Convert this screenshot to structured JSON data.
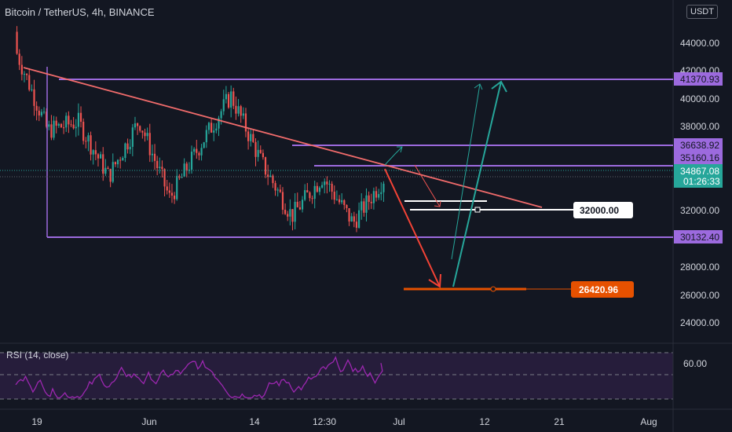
{
  "header": {
    "title": "Bitcoin / TetherUS, 4h, BINANCE",
    "currency": "USDT"
  },
  "colors": {
    "background": "#131722",
    "up_candle": "#26a69a",
    "down_candle": "#ef5350",
    "level_line": "#9c6ade",
    "trend_line": "#f06b6b",
    "target_line": "#e65100",
    "rsi_line": "#9c27b0"
  },
  "price_axis": {
    "ticks": [
      "44000.00",
      "42000.00",
      "40000.00",
      "38000.00",
      "32000.00",
      "28000.00",
      "26000.00",
      "24000.00"
    ]
  },
  "price_tags": {
    "r_41370": "41370.93",
    "r_36638": "36638.92",
    "r_35160": "35160.16",
    "last_price": "34867.08",
    "countdown": "01:26:33",
    "s_30132": "30132.40",
    "label_32000": "32000.00",
    "target_26420": "26420.96"
  },
  "time_axis": {
    "labels": [
      "19",
      "Jun",
      "14",
      "12:30",
      "Jul",
      "12",
      "21",
      "Aug"
    ]
  },
  "rsi": {
    "label": "RSI (14, close)",
    "level_label": "60.00",
    "latest": 61
  },
  "chart_data": {
    "type": "candlestick",
    "title": "Bitcoin / TetherUS, 4h, BINANCE",
    "x_range_labels": [
      "19",
      "Jun",
      "14",
      "12:30",
      "Jul",
      "12",
      "21",
      "Aug"
    ],
    "ylim": [
      22800,
      46000
    ],
    "horizontal_levels": [
      41370.93,
      36638.92,
      35160.16,
      30132.4
    ],
    "last_price": 34867.08,
    "drawn_levels": [
      32000.0,
      26420.96
    ],
    "price_path_approx": [
      {
        "x": "May 19",
        "close": 43500
      },
      {
        "x": "May 22",
        "close": 38200
      },
      {
        "x": "May 26",
        "close": 38800
      },
      {
        "x": "May 29",
        "close": 35000
      },
      {
        "x": "Jun 3",
        "close": 38900
      },
      {
        "x": "Jun 7",
        "close": 33500
      },
      {
        "x": "Jun 11",
        "close": 37200
      },
      {
        "x": "Jun 15",
        "close": 40600
      },
      {
        "x": "Jun 18",
        "close": 36000
      },
      {
        "x": "Jun 22",
        "close": 32300
      },
      {
        "x": "Jun 24",
        "close": 35000
      },
      {
        "x": "Jun 26",
        "close": 31800
      },
      {
        "x": "Jun 28",
        "close": 34867
      }
    ],
    "rsi_series": {
      "name": "RSI (14, close)",
      "ylim": [
        20,
        80
      ],
      "levels": [
        70,
        50,
        30
      ]
    }
  }
}
